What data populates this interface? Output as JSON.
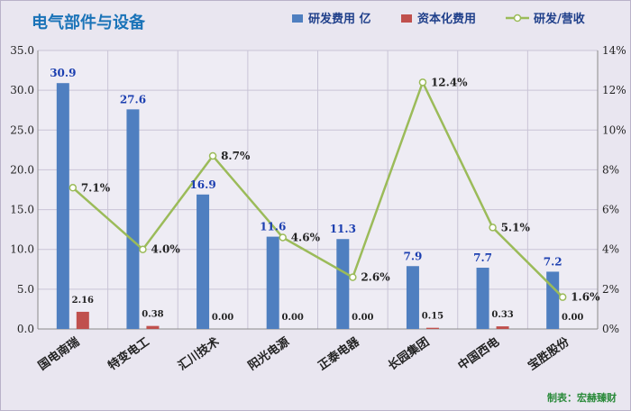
{
  "chart_data": {
    "type": "bar",
    "title": "电气部件与设备",
    "categories": [
      "国电南瑞",
      "特变电工",
      "汇川技术",
      "阳光电源",
      "正泰电器",
      "长园集团",
      "中国西电",
      "宝胜股份"
    ],
    "series": [
      {
        "name": "研发费用 亿",
        "type": "bar",
        "axis": "left",
        "color": "#4f7fc0",
        "values": [
          30.9,
          27.6,
          16.9,
          11.6,
          11.3,
          7.9,
          7.7,
          7.2
        ],
        "labels": [
          "30.9",
          "27.6",
          "16.9",
          "11.6",
          "11.3",
          "7.9",
          "7.7",
          "7.2"
        ]
      },
      {
        "name": "资本化费用",
        "type": "bar",
        "axis": "left",
        "color": "#c0504d",
        "values": [
          2.16,
          0.38,
          0.0,
          0.0,
          0.0,
          0.15,
          0.33,
          0.0
        ],
        "labels": [
          "2.16",
          "0.38",
          "0.00",
          "0.00",
          "0.00",
          "0.15",
          "0.33",
          "0.00"
        ]
      },
      {
        "name": "研发/营收",
        "type": "line",
        "axis": "right",
        "color": "#9bbb59",
        "values": [
          7.1,
          4.0,
          8.7,
          4.6,
          2.6,
          12.4,
          5.1,
          1.6
        ],
        "labels": [
          "7.1%",
          "4.0%",
          "8.7%",
          "4.6%",
          "2.6%",
          "12.4%",
          "5.1%",
          "1.6%"
        ]
      }
    ],
    "y_left": {
      "min": 0,
      "max": 35,
      "step": 5,
      "ticks": [
        "0.0",
        "5.0",
        "10.0",
        "15.0",
        "20.0",
        "25.0",
        "30.0",
        "35.0"
      ]
    },
    "y_right": {
      "min": 0,
      "max": 14,
      "step": 2,
      "ticks": [
        "0%",
        "2%",
        "4%",
        "6%",
        "8%",
        "10%",
        "12%",
        "14%"
      ]
    },
    "grid": true,
    "legend": "top-right",
    "footer": "制表：宏赫臻财"
  }
}
